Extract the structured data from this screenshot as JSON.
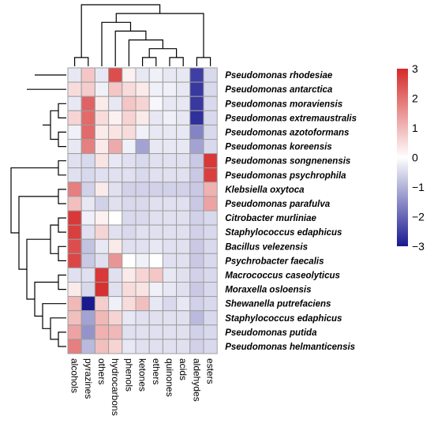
{
  "chart_data": {
    "type": "heatmap",
    "columns": [
      "alcohols",
      "pyrazines",
      "others",
      "hydrocarbons",
      "phenols",
      "ketones",
      "ethers",
      "quinones",
      "acids",
      "aldehydes",
      "esters"
    ],
    "rows": [
      "Pseudomonas rhodesiae",
      "Pseudomonas antarctica",
      "Pseudomonas moraviensis",
      "Pseudomonas extremaustralis",
      "Pseudomonas azotoformans",
      "Pseudomonas koreensis",
      "Pseudomonas songnenensis",
      "Pseudomonas psychrophila",
      "Klebsiella oxytoca",
      "Pseudomonas parafulva",
      "Citrobacter murliniae",
      "Staphylococcus edaphicus",
      "Bacillus velezensis",
      "Psychrobacter faecalis",
      "Macrococcus caseolyticus",
      "Moraxella osloensis",
      "Shewanella putrefaciens",
      "Staphylococcus edaphicus",
      "Pseudomonas putida",
      "Pseudomonas helmanticensis"
    ],
    "values": [
      [
        -0.3,
        0.8,
        -0.3,
        2.5,
        0.2,
        -0.3,
        -0.2,
        -0.3,
        -0.3,
        -2.5,
        -0.5
      ],
      [
        0.5,
        0.7,
        -0.2,
        0.8,
        0.5,
        0.3,
        -0.2,
        -0.2,
        -0.3,
        -2.6,
        -0.5
      ],
      [
        -0.3,
        2.2,
        0.3,
        -0.3,
        0.8,
        0.6,
        -0.1,
        -0.3,
        -0.3,
        -2.6,
        -0.5
      ],
      [
        0.6,
        2.1,
        0.5,
        0.2,
        0.6,
        0.3,
        -0.3,
        -0.2,
        -0.3,
        -2.7,
        -0.5
      ],
      [
        -0.2,
        2.1,
        0.3,
        0.4,
        0.5,
        -0.2,
        -0.3,
        -0.3,
        -0.3,
        -1.6,
        -0.5
      ],
      [
        -0.3,
        1.8,
        0.3,
        1.2,
        -0.2,
        -1.2,
        -0.3,
        -0.3,
        -0.3,
        -1.2,
        -0.5
      ],
      [
        -0.4,
        -0.5,
        0.4,
        -0.3,
        -0.4,
        -0.5,
        -0.4,
        -0.4,
        -0.4,
        -0.7,
        2.8
      ],
      [
        -0.4,
        -0.5,
        -0.4,
        -0.4,
        -0.4,
        -0.5,
        -0.4,
        -0.4,
        -0.4,
        -0.7,
        2.7
      ],
      [
        1.8,
        -0.6,
        0.3,
        -0.4,
        -0.6,
        -0.6,
        -0.6,
        -0.6,
        -0.6,
        -0.7,
        1.1
      ],
      [
        0.9,
        -0.3,
        -0.6,
        -0.4,
        -0.5,
        -0.5,
        -0.4,
        -0.4,
        -0.4,
        -0.7,
        1.3
      ],
      [
        2.8,
        -0.2,
        0.2,
        0.0,
        -0.5,
        -0.5,
        -0.4,
        -0.4,
        -0.4,
        -0.6,
        -0.5
      ],
      [
        2.7,
        -0.4,
        0.6,
        -0.4,
        -0.5,
        -0.4,
        -0.4,
        -0.4,
        -0.4,
        -0.6,
        -0.5
      ],
      [
        2.5,
        -0.8,
        -0.3,
        0.3,
        -0.4,
        -0.4,
        -0.3,
        -0.4,
        -0.4,
        -0.7,
        -0.5
      ],
      [
        2.6,
        -0.7,
        -0.4,
        1.5,
        0.0,
        -0.2,
        0.0,
        -0.4,
        -0.4,
        -0.7,
        -0.5
      ],
      [
        -0.4,
        -0.4,
        2.8,
        -0.4,
        0.3,
        0.6,
        0.8,
        -0.3,
        -0.4,
        -0.6,
        -0.5
      ],
      [
        0.3,
        -0.5,
        2.9,
        -0.4,
        0.5,
        0.4,
        -0.2,
        -0.3,
        -0.4,
        -0.7,
        -0.5
      ],
      [
        1.0,
        -3.0,
        0.7,
        -0.2,
        0.5,
        0.9,
        -0.3,
        -0.5,
        -0.3,
        -0.6,
        -0.5
      ],
      [
        0.9,
        -1.2,
        1.0,
        0.6,
        -0.3,
        -0.4,
        -0.4,
        -0.4,
        -0.4,
        -0.9,
        -0.5
      ],
      [
        1.3,
        -1.4,
        1.1,
        1.0,
        -0.4,
        -0.4,
        -0.4,
        -0.4,
        -0.4,
        -0.6,
        -0.5
      ],
      [
        1.8,
        -0.9,
        0.9,
        0.6,
        -0.3,
        -0.4,
        -0.4,
        -0.4,
        -0.4,
        -0.6,
        -0.5
      ]
    ],
    "color_range": [
      -3,
      3
    ],
    "colors": {
      "low": "#191990",
      "mid": "#ffffff",
      "high": "#d52a2a"
    },
    "legend_ticks": [
      "3",
      "2",
      "1",
      "0",
      "−1",
      "−2",
      "−3"
    ],
    "legend_placement": "right",
    "row_dendrogram": "left",
    "column_dendrogram": "top",
    "row_tree": [
      [
        1,
        [
          0,
          [
            [
              [
                2,
                3
              ],
              [
                4,
                5
              ]
            ]
          ]
        ]
      ],
      [
        [
          6,
          7
        ],
        [
          [
            8,
            9
          ],
          [
            [
              [
                10,
                11
              ],
              [
                12,
                13
              ]
            ],
            [
              [
                14,
                15
              ],
              [
                16,
                [
                  17,
                  [
                    18,
                    19
                  ]
                ]
              ]
            ]
          ]
        ]
      ]
    ],
    "column_tree": [
      [
        0,
        1
      ],
      [
        [
          2,
          [
            3,
            [
              4,
              [
                [
                  5,
                  6
                ],
                [
                  7,
                  8
                ]
              ]
            ]
          ]
        ],
        [
          9,
          10
        ]
      ]
    ]
  }
}
